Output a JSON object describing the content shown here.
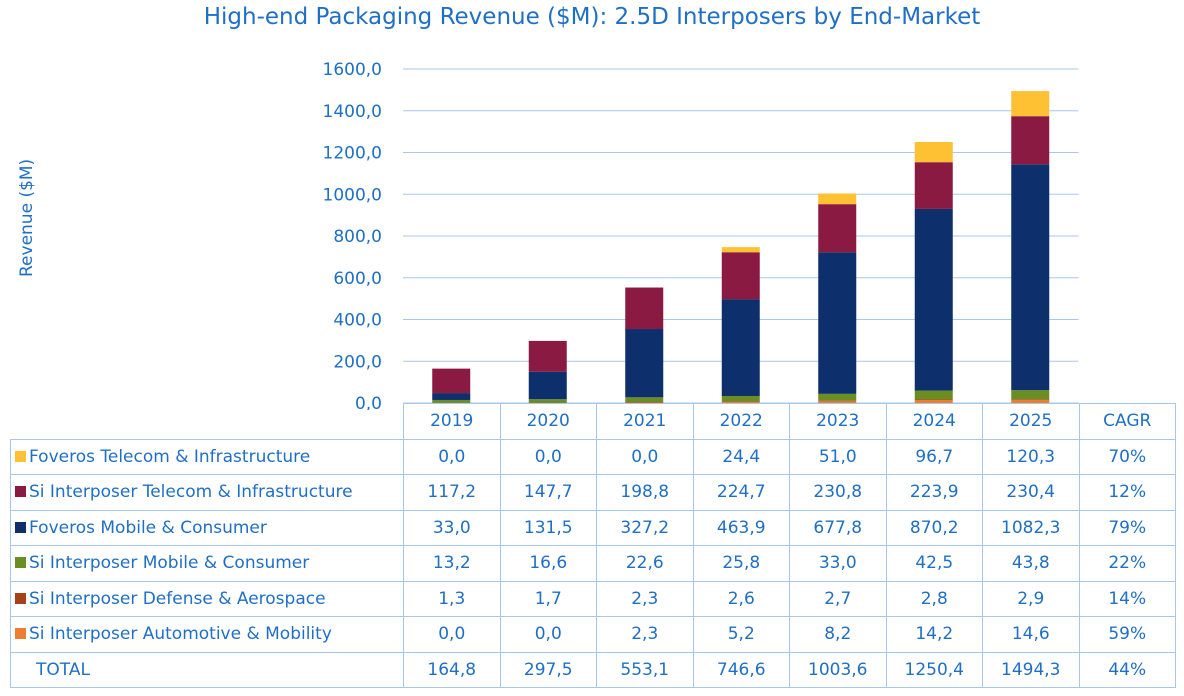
{
  "chart_data": {
    "type": "bar",
    "stacked": true,
    "title": "High-end Packaging Revenue ($M): 2.5D Interposers by End-Market",
    "ylabel": "Revenue ($M)",
    "ylim": [
      0,
      1600
    ],
    "yticks": [
      "0,0",
      "200,0",
      "400,0",
      "600,0",
      "800,0",
      "1000,0",
      "1200,0",
      "1400,0",
      "1600,0"
    ],
    "grid": true,
    "categories": [
      "2019",
      "2020",
      "2021",
      "2022",
      "2023",
      "2024",
      "2025"
    ],
    "cagr_header": "CAGR",
    "series": [
      {
        "name": "Si Interposer Automotive & Mobility",
        "color": "#ed7d31",
        "values": [
          0.0,
          0.0,
          2.3,
          5.2,
          8.2,
          14.2,
          14.6
        ],
        "labels": [
          "0,0",
          "0,0",
          "2,3",
          "5,2",
          "8,2",
          "14,2",
          "14,6"
        ],
        "cagr": "59%"
      },
      {
        "name": "Si Interposer Defense & Aerospace",
        "color": "#a5421a",
        "values": [
          1.3,
          1.7,
          2.3,
          2.6,
          2.7,
          2.8,
          2.9
        ],
        "labels": [
          "1,3",
          "1,7",
          "2,3",
          "2,6",
          "2,7",
          "2,8",
          "2,9"
        ],
        "cagr": "14%"
      },
      {
        "name": "Si Interposer Mobile & Consumer",
        "color": "#6b8e23",
        "values": [
          13.2,
          16.6,
          22.6,
          25.8,
          33.0,
          42.5,
          43.8
        ],
        "labels": [
          "13,2",
          "16,6",
          "22,6",
          "25,8",
          "33,0",
          "42,5",
          "43,8"
        ],
        "cagr": "22%"
      },
      {
        "name": "Foveros Mobile & Consumer",
        "color": "#0d2f6b",
        "values": [
          33.0,
          131.5,
          327.2,
          463.9,
          677.8,
          870.2,
          1082.3
        ],
        "labels": [
          "33,0",
          "131,5",
          "327,2",
          "463,9",
          "677,8",
          "870,2",
          "1082,3"
        ],
        "cagr": "79%"
      },
      {
        "name": "Si Interposer Telecom & Infrastructure",
        "color": "#8b1a42",
        "values": [
          117.2,
          147.7,
          198.8,
          224.7,
          230.8,
          223.9,
          230.4
        ],
        "labels": [
          "117,2",
          "147,7",
          "198,8",
          "224,7",
          "230,8",
          "223,9",
          "230,4"
        ],
        "cagr": "12%"
      },
      {
        "name": "Foveros Telecom & Infrastructure",
        "color": "#fdc133",
        "values": [
          0.0,
          0.0,
          0.0,
          24.4,
          51.0,
          96.7,
          120.3
        ],
        "labels": [
          "0,0",
          "0,0",
          "0,0",
          "24,4",
          "51,0",
          "96,7",
          "120,3"
        ],
        "cagr": "70%"
      }
    ],
    "total": {
      "name": "TOTAL",
      "values": [
        164.8,
        297.5,
        553.1,
        746.6,
        1003.6,
        1250.4,
        1494.3
      ],
      "labels": [
        "164,8",
        "297,5",
        "553,1",
        "746,6",
        "1003,6",
        "1250,4",
        "1494,3"
      ],
      "cagr": "44%"
    },
    "table_row_order": [
      5,
      4,
      3,
      2,
      1,
      0
    ]
  },
  "colors": {
    "text": "#1f6fc5",
    "grid": "#a9c7ea"
  }
}
